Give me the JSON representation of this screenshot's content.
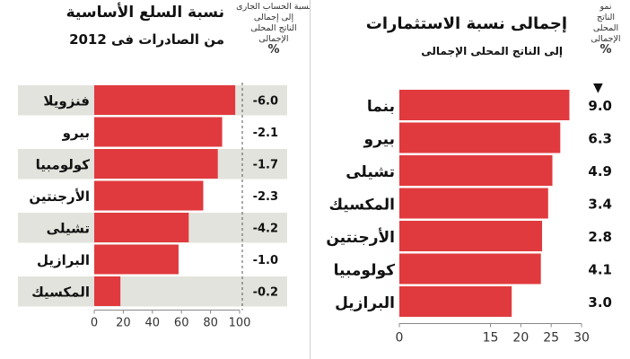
{
  "left_chart": {
    "title_line1": "نسبة السلع الأساسية",
    "title_line2": "من الصادرات فى 2012",
    "side_header_lines": [
      "نسبة الحساب الجارى",
      "إلى إجمالى",
      "الناتج المحلى",
      "الإجمالى"
    ],
    "side_header_unit": "%"
  },
  "right_chart": {
    "title_line1": "إجمالى نسبة الاستثمارات",
    "title_line2": "إلى الناتج  المحلى الإجمالى",
    "side_header_lines": [
      "نمو",
      "الناتج",
      "المحلى",
      "الإجمالى"
    ],
    "side_header_unit": "%",
    "sort_marker": "▼"
  },
  "chart_data": [
    {
      "type": "bar",
      "orientation": "horizontal",
      "title": "نسبة السلع الأساسية من الصادرات فى 2012",
      "categories": [
        "فنزويلا",
        "بيرو",
        "كولومبيا",
        "الأرجنتين",
        "تشيلى",
        "البرازيل",
        "المكسيك"
      ],
      "values": [
        97,
        88,
        85,
        75,
        65,
        58,
        18
      ],
      "side_column": {
        "label": "نسبة الحساب الجارى إلى إجمالى الناتج المحلى الإجمالى %",
        "values": [
          "-6.0",
          "-2.1",
          "-1.7",
          "-2.3",
          "-4.2",
          "-1.0",
          "-0.2"
        ]
      },
      "xlim": [
        0,
        100
      ],
      "xticks": [
        0,
        20,
        40,
        60,
        80,
        100
      ],
      "bar_color": "#e03a3e",
      "band_color": "#e3e3dd"
    },
    {
      "type": "bar",
      "orientation": "horizontal",
      "title": "إجمالى نسبة الاستثمارات إلى الناتج المحلى الإجمالى",
      "categories": [
        "بنما",
        "بيرو",
        "تشيلى",
        "المكسيك",
        "الأرجنتين",
        "كولومبيا",
        "البرازيل"
      ],
      "values": [
        28,
        26.5,
        25.2,
        24.5,
        23.5,
        23.3,
        18.5
      ],
      "side_column": {
        "label": "نمو الناتج المحلى الإجمالى %",
        "values": [
          "9.0",
          "6.3",
          "4.9",
          "3.4",
          "2.8",
          "4.1",
          "3.0"
        ]
      },
      "xlim": [
        0,
        30
      ],
      "xticks": [
        0,
        15,
        20,
        25,
        30
      ],
      "bar_color": "#e03a3e"
    }
  ]
}
